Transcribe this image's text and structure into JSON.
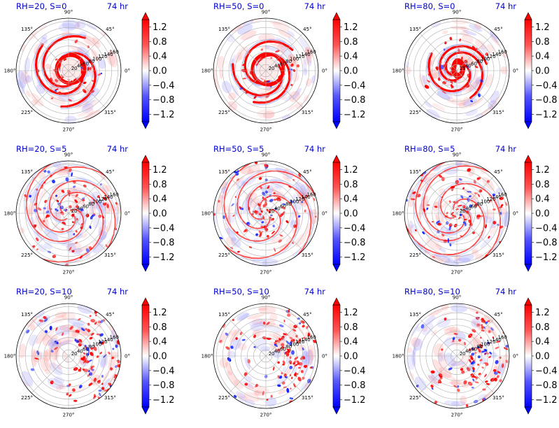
{
  "chart_data": {
    "type": "polar-contour-grid",
    "grid": {
      "rows": 3,
      "cols": 3
    },
    "time_label": "74 hr",
    "colormap": "bwr",
    "angle_labels": [
      "0°",
      "45°",
      "90°",
      "135°",
      "180°",
      "225°",
      "270°",
      "315°"
    ],
    "radial_ticks": [
      20,
      40,
      60,
      80,
      100,
      120,
      140,
      160
    ],
    "rmax": 170,
    "colorbar": {
      "ticks": [
        "1.2",
        "0.8",
        "0.4",
        "0.0",
        "−0.4",
        "−0.8",
        "−1.2"
      ],
      "tick_values": [
        1.2,
        0.8,
        0.4,
        0.0,
        -0.4,
        -0.8,
        -1.2
      ],
      "range": [
        -1.4,
        1.4
      ],
      "extend": "both"
    },
    "panels": [
      {
        "title": "RH=20, S=0",
        "rh": 20,
        "s": 0
      },
      {
        "title": "RH=50, S=0",
        "rh": 50,
        "s": 0
      },
      {
        "title": "RH=80, S=0",
        "rh": 80,
        "s": 0
      },
      {
        "title": "RH=20, S=5",
        "rh": 20,
        "s": 5
      },
      {
        "title": "RH=50, S=5",
        "rh": 50,
        "s": 5
      },
      {
        "title": "RH=80, S=5",
        "rh": 80,
        "s": 5
      },
      {
        "title": "RH=20, S=10",
        "rh": 20,
        "s": 10
      },
      {
        "title": "RH=50, S=10",
        "rh": 50,
        "s": 10
      },
      {
        "title": "RH=80, S=10",
        "rh": 80,
        "s": 10
      }
    ]
  }
}
